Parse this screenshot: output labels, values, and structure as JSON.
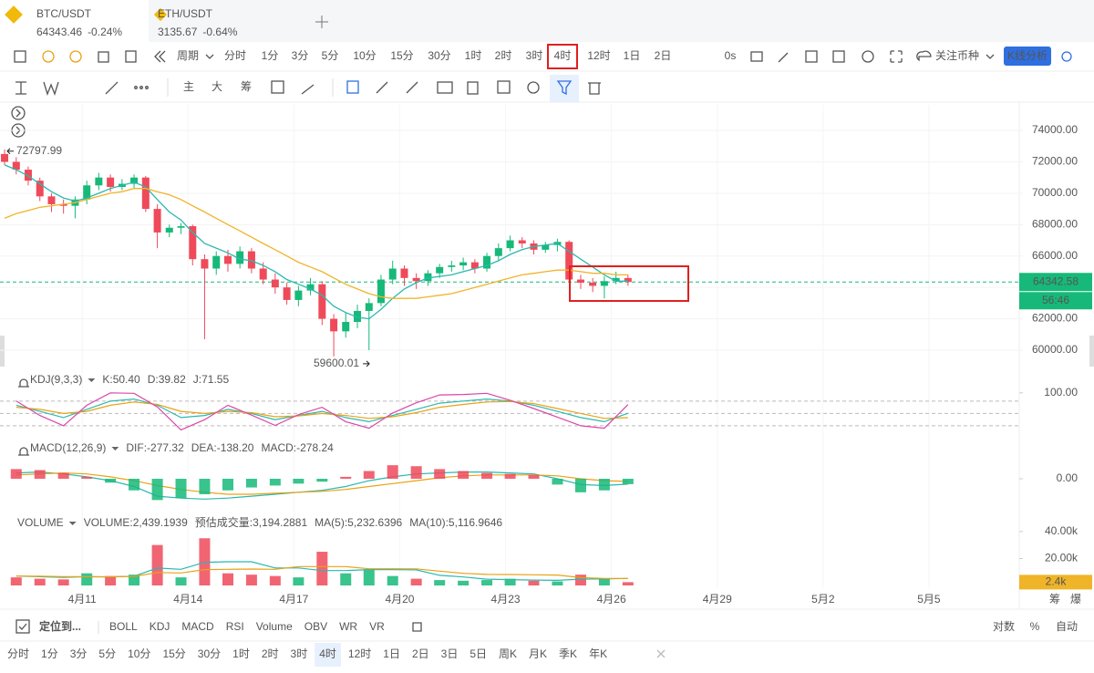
{
  "ui": {
    "tabs": [
      {
        "pair": "BTC/USDT",
        "price": "64343.46",
        "change": "-0.24%"
      },
      {
        "pair": "ETH/USDT",
        "price": "3135.67",
        "change": "-0.64%"
      }
    ],
    "period": "周期",
    "intervals": [
      "分时",
      "1分",
      "3分",
      "5分",
      "10分",
      "15分",
      "30分",
      "1时",
      "2时",
      "3时",
      "4时",
      "12时",
      "1日",
      "2日"
    ],
    "active_interval": 10,
    "timer": "0s",
    "watch": "关注币种",
    "analysis": "K线分析",
    "tools": [
      "主",
      "大",
      "筹"
    ],
    "kdj_title": "KDJ(9,3,3)",
    "macd_title": "MACD(12,26,9)",
    "volume_title": "VOLUME",
    "volume_estimate": "预估成交量:3,194.2881",
    "locate": "定位到...",
    "indicators": [
      "BOLL",
      "KDJ",
      "MACD",
      "RSI",
      "Volume",
      "OBV",
      "WR",
      "VR"
    ],
    "active_indicators": [
      1,
      2,
      4
    ],
    "scale_modes": [
      "对数",
      "%",
      "自动"
    ],
    "active_scale": 2,
    "bottom_intervals": [
      "分时",
      "1分",
      "3分",
      "5分",
      "10分",
      "15分",
      "30分",
      "1时",
      "2时",
      "3时",
      "4时",
      "12时",
      "1日",
      "2日",
      "3日",
      "5日",
      "周K",
      "月K",
      "季K",
      "年K"
    ],
    "bottom_active": 10,
    "corner": [
      "筹",
      "爆"
    ]
  },
  "chart_data": [
    {
      "type": "candlestick",
      "up_color": "#16b979",
      "down_color": "#ef4a5a",
      "x": [
        8.8,
        9.13,
        9.47,
        9.8,
        10.13,
        10.47,
        10.8,
        11.13,
        11.47,
        11.8,
        12.13,
        12.47,
        12.8,
        13.13,
        13.47,
        13.8,
        14.13,
        14.47,
        14.8,
        15.13,
        15.47,
        15.8,
        16.13,
        16.47,
        16.8,
        17.13,
        17.47,
        17.8,
        18.13,
        18.47,
        18.8,
        19.13,
        19.47,
        19.8,
        20.13,
        20.47,
        20.8,
        21.13,
        21.47,
        21.8,
        22.13,
        22.47,
        22.8,
        23.13,
        23.47,
        23.8,
        24.13,
        24.47,
        24.8,
        25.13,
        25.47,
        25.8,
        26.13,
        26.47
      ],
      "ohlc": [
        [
          72500,
          72797.99,
          71800,
          72000
        ],
        [
          72000,
          72300,
          71200,
          71500
        ],
        [
          71500,
          71700,
          70500,
          70800
        ],
        [
          70800,
          71000,
          69500,
          69800
        ],
        [
          69800,
          70000,
          68800,
          69300
        ],
        [
          69300,
          69600,
          68700,
          69200
        ],
        [
          69200,
          69800,
          68400,
          69600
        ],
        [
          69600,
          70800,
          69300,
          70500
        ],
        [
          70500,
          71300,
          70200,
          71000
        ],
        [
          71000,
          71200,
          70100,
          70400
        ],
        [
          70400,
          70900,
          70200,
          70600
        ],
        [
          70600,
          71200,
          70300,
          71000
        ],
        [
          71000,
          71100,
          68800,
          69000
        ],
        [
          69000,
          69300,
          66500,
          67500
        ],
        [
          67500,
          68000,
          67200,
          67800
        ],
        [
          67800,
          68100,
          67400,
          67900
        ],
        [
          67900,
          68000,
          65400,
          65800
        ],
        [
          65800,
          66100,
          60700,
          65200
        ],
        [
          65200,
          66300,
          64800,
          66000
        ],
        [
          66000,
          66400,
          65000,
          65500
        ],
        [
          65500,
          66600,
          65200,
          66300
        ],
        [
          66300,
          66500,
          64900,
          65200
        ],
        [
          65200,
          65600,
          64200,
          64500
        ],
        [
          64500,
          64900,
          63600,
          64000
        ],
        [
          64000,
          64300,
          62900,
          63200
        ],
        [
          63200,
          64100,
          62800,
          63800
        ],
        [
          63800,
          64600,
          63500,
          64200
        ],
        [
          64200,
          64400,
          61600,
          62000
        ],
        [
          62000,
          62300,
          59600.01,
          61200
        ],
        [
          61200,
          62400,
          60800,
          61800
        ],
        [
          61800,
          62900,
          61400,
          62500
        ],
        [
          62500,
          63300,
          60000,
          63000
        ],
        [
          63000,
          64800,
          62800,
          64500
        ],
        [
          64500,
          65700,
          64200,
          65200
        ],
        [
          65200,
          65400,
          64100,
          64600
        ],
        [
          64600,
          64900,
          63900,
          64400
        ],
        [
          64400,
          65100,
          64100,
          64900
        ],
        [
          64900,
          65500,
          64600,
          65300
        ],
        [
          65300,
          65700,
          65000,
          65400
        ],
        [
          65400,
          65900,
          65100,
          65600
        ],
        [
          65600,
          65800,
          64900,
          65200
        ],
        [
          65200,
          66200,
          65000,
          66000
        ],
        [
          66000,
          66800,
          65700,
          66500
        ],
        [
          66500,
          67300,
          66300,
          67000
        ],
        [
          67000,
          67200,
          66500,
          66800
        ],
        [
          66800,
          67000,
          66100,
          66400
        ],
        [
          66400,
          66900,
          66200,
          66700
        ],
        [
          66700,
          67100,
          66300,
          66900
        ],
        [
          66900,
          67000,
          64300,
          64500
        ],
        [
          64500,
          64800,
          63900,
          64300
        ],
        [
          64300,
          64600,
          63700,
          64100
        ],
        [
          64100,
          64700,
          63300,
          64400
        ],
        [
          64400,
          65000,
          64200,
          64600
        ],
        [
          64600,
          64800,
          64100,
          64343.46
        ]
      ],
      "lines": [
        {
          "color": "#2bb8b0",
          "values": [
            71800,
            71500,
            71100,
            70600,
            70100,
            69700,
            69500,
            69700,
            70000,
            70300,
            70500,
            70700,
            70400,
            69600,
            68800,
            68300,
            67500,
            66800,
            66500,
            66200,
            65800,
            65700,
            65400,
            65000,
            64500,
            64200,
            63900,
            63500,
            62800,
            62400,
            62100,
            62000,
            62600,
            63300,
            63900,
            64300,
            64600,
            64700,
            64800,
            65000,
            65200,
            65400,
            65700,
            66100,
            66400,
            66600,
            66700,
            66800,
            66300,
            65800,
            65300,
            64800,
            64400,
            64400
          ]
        },
        {
          "color": "#f0b429",
          "values": [
            68400,
            68700,
            68900,
            69100,
            69200,
            69300,
            69400,
            69600,
            69800,
            70000,
            70100,
            70300,
            70300,
            70100,
            69900,
            69600,
            69200,
            68800,
            68400,
            68000,
            67600,
            67200,
            66800,
            66400,
            66000,
            65600,
            65300,
            65000,
            64600,
            64200,
            63900,
            63600,
            63400,
            63300,
            63300,
            63300,
            63400,
            63500,
            63600,
            63800,
            64000,
            64200,
            64400,
            64600,
            64800,
            64900,
            65000,
            65100,
            65100,
            65000,
            64900,
            64900,
            64800,
            64800
          ]
        }
      ],
      "xlim": [
        8.67,
        37.56
      ],
      "xticks": [
        {
          "value": 11,
          "label": "4月11"
        },
        {
          "value": 14,
          "label": "4月14"
        },
        {
          "value": 17,
          "label": "4月17"
        },
        {
          "value": 20,
          "label": "4月20"
        },
        {
          "value": 23,
          "label": "4月23"
        },
        {
          "value": 26,
          "label": "4月26"
        },
        {
          "value": 29,
          "label": "4月29"
        },
        {
          "value": 32,
          "label": "5月2"
        },
        {
          "value": 35,
          "label": "5月5"
        }
      ],
      "ylim": [
        59070,
        75630
      ],
      "yticks": [
        {
          "value": 74000,
          "label": "74000.00"
        },
        {
          "value": 72000,
          "label": "72000.00"
        },
        {
          "value": 70000,
          "label": "70000.00"
        },
        {
          "value": 68000,
          "label": "68000.00"
        },
        {
          "value": 66000,
          "label": "66000.00"
        },
        {
          "value": 64000,
          "label": "64000.00"
        },
        {
          "value": 62000,
          "label": "62000.00"
        },
        {
          "value": 60000,
          "label": "60000.00"
        }
      ],
      "price_line": {
        "value": 64342.58,
        "countdown": "56:46",
        "color": "#16b979"
      }
    },
    {
      "type": "line",
      "xlim": [
        8.67,
        37.56
      ],
      "x": [
        9.13,
        9.8,
        10.47,
        11.13,
        11.8,
        12.47,
        13.13,
        13.8,
        14.47,
        15.13,
        15.8,
        16.47,
        17.13,
        17.8,
        18.47,
        19.13,
        19.8,
        20.47,
        21.13,
        21.8,
        22.47,
        23.13,
        23.8,
        24.47,
        25.13,
        25.8,
        26.47
      ],
      "ylim": [
        -9,
        124
      ],
      "yticks": [
        {
          "value": 100,
          "label": "100.00"
        }
      ],
      "levels": [
        80,
        50,
        20
      ],
      "series": [
        {
          "name": "K:50.40",
          "color": "#2bb8b0",
          "values": [
            70,
            55,
            40,
            60,
            80,
            85,
            70,
            40,
            45,
            60,
            50,
            35,
            45,
            55,
            40,
            30,
            45,
            60,
            75,
            80,
            85,
            80,
            70,
            55,
            40,
            30,
            50.4
          ]
        },
        {
          "name": "D:39.82",
          "color": "#e9a215",
          "values": [
            65,
            60,
            50,
            55,
            70,
            78,
            72,
            55,
            50,
            55,
            52,
            42,
            44,
            50,
            45,
            38,
            42,
            52,
            65,
            72,
            78,
            79,
            74,
            62,
            50,
            38,
            39.82
          ]
        },
        {
          "name": "J:71.55",
          "color": "#d946a8",
          "values": [
            80,
            45,
            20,
            70,
            100,
            99,
            66,
            10,
            35,
            70,
            46,
            21,
            47,
            65,
            30,
            14,
            51,
            76,
            95,
            96,
            99,
            82,
            62,
            41,
            20,
            14,
            71.55
          ]
        }
      ]
    },
    {
      "type": "macd",
      "xlim": [
        8.67,
        37.56
      ],
      "up_color": "#ef4a5a",
      "down_color": "#16b979",
      "x": [
        9.13,
        9.8,
        10.47,
        11.13,
        11.8,
        12.47,
        13.13,
        13.8,
        14.47,
        15.13,
        15.8,
        16.47,
        17.13,
        17.8,
        18.47,
        19.13,
        19.8,
        20.47,
        21.13,
        21.8,
        22.47,
        23.13,
        23.8,
        24.47,
        25.13,
        25.8,
        26.47
      ],
      "ylim": [
        -1650,
        1650
      ],
      "yticks": [
        {
          "value": 0,
          "label": "0.00"
        }
      ],
      "series": [
        {
          "name": "DIF:-277.32",
          "color": "#2bb8b0",
          "values": [
            300,
            350,
            250,
            100,
            -100,
            -400,
            -900,
            -1000,
            -1050,
            -1000,
            -900,
            -800,
            -700,
            -600,
            -400,
            -100,
            100,
            250,
            300,
            350,
            350,
            300,
            250,
            0,
            -300,
            -350,
            -277.32
          ]
        },
        {
          "name": "DEA:-138.20",
          "color": "#e9a215",
          "values": [
            200,
            250,
            300,
            250,
            100,
            -100,
            -350,
            -550,
            -700,
            -800,
            -800,
            -750,
            -700,
            -650,
            -550,
            -400,
            -250,
            -100,
            50,
            150,
            200,
            200,
            200,
            150,
            0,
            -100,
            -138.2
          ]
        },
        {
          "name": "MACD:-278.24",
          "color": "#c93fa9",
          "kind": "bar",
          "values": [
            500,
            450,
            300,
            100,
            -200,
            -600,
            -1100,
            -1000,
            -800,
            -600,
            -450,
            -350,
            -250,
            -150,
            100,
            400,
            700,
            650,
            500,
            400,
            300,
            250,
            200,
            -300,
            -700,
            -600,
            -278.24
          ]
        }
      ]
    },
    {
      "type": "bar",
      "xlim": [
        8.67,
        37.56
      ],
      "x": [
        9.13,
        9.8,
        10.47,
        11.13,
        11.8,
        12.47,
        13.13,
        13.8,
        14.47,
        15.13,
        15.8,
        16.47,
        17.13,
        17.8,
        18.47,
        19.13,
        19.8,
        20.47,
        21.13,
        21.8,
        22.47,
        23.13,
        23.8,
        24.47,
        25.13,
        25.8,
        26.47
      ],
      "ylim": [
        0,
        48700
      ],
      "yticks": [
        {
          "value": 40000,
          "label": "40.00k"
        },
        {
          "value": 20000,
          "label": "20.00k"
        }
      ],
      "last_label": "2.4k",
      "series": [
        {
          "name": "VOLUME:2,439.1939",
          "kind": "bar",
          "values": [
            6000,
            5000,
            4500,
            9000,
            7000,
            8000,
            30000,
            6000,
            35000,
            9000,
            8000,
            7000,
            6000,
            25000,
            9000,
            12000,
            7000,
            5000,
            4000,
            3500,
            4000,
            5000,
            3500,
            3000,
            8000,
            5000,
            2439.1939
          ]
        },
        {
          "name": "MA(5):5,232.6396",
          "color": "#2bb8b0",
          "values": [
            7000,
            6500,
            6000,
            6500,
            6300,
            6900,
            12900,
            12000,
            17200,
            17600,
            17600,
            13000,
            13000,
            11000,
            11000,
            11800,
            11800,
            11600,
            7500,
            6300,
            4700,
            4300,
            4000,
            3800,
            4700,
            4900,
            5232.6396
          ]
        },
        {
          "name": "MA(10):5,116.9646",
          "color": "#e9a215",
          "values": [
            7000,
            6800,
            6500,
            6500,
            6400,
            6700,
            9600,
            9300,
            11800,
            12000,
            12200,
            12000,
            14000,
            14000,
            14000,
            12400,
            12400,
            12300,
            10600,
            9000,
            8200,
            8100,
            7900,
            7700,
            5800,
            5200,
            5116.9646
          ]
        }
      ]
    }
  ]
}
